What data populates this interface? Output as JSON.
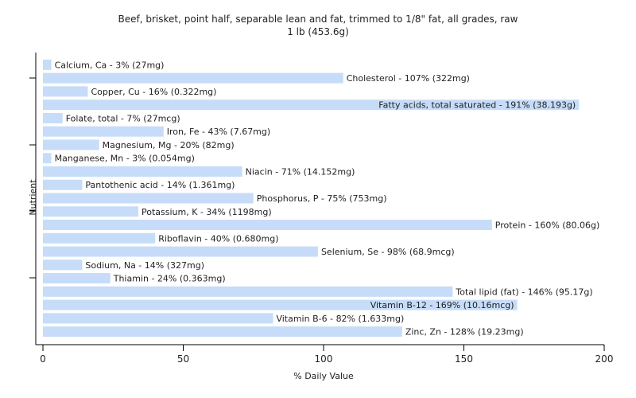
{
  "chart_data": {
    "type": "bar",
    "orientation": "horizontal",
    "title": "Beef, brisket, point half, separable lean and fat, trimmed to 1/8\" fat, all grades, raw",
    "subtitle": "1 lb (453.6g)",
    "xlabel": "% Daily Value",
    "ylabel": "Nutrient",
    "xlim": [
      0,
      200
    ],
    "xticks": [
      0,
      50,
      100,
      150,
      200
    ],
    "grid": false,
    "bar_color": "#c6dcf8",
    "categories": [
      "Calcium, Ca",
      "Cholesterol",
      "Copper, Cu",
      "Fatty acids, total saturated",
      "Folate, total",
      "Iron, Fe",
      "Magnesium, Mg",
      "Manganese, Mn",
      "Niacin",
      "Pantothenic acid",
      "Phosphorus, P",
      "Potassium, K",
      "Protein",
      "Riboflavin",
      "Selenium, Se",
      "Sodium, Na",
      "Thiamin",
      "Total lipid (fat)",
      "Vitamin B-12",
      "Vitamin B-6",
      "Zinc, Zn"
    ],
    "values": [
      3,
      107,
      16,
      191,
      7,
      43,
      20,
      3,
      71,
      14,
      75,
      34,
      160,
      40,
      98,
      14,
      24,
      146,
      169,
      82,
      128
    ],
    "labels": [
      "Calcium, Ca - 3% (27mg)",
      "Cholesterol - 107% (322mg)",
      "Copper, Cu - 16% (0.322mg)",
      "Fatty acids, total saturated - 191% (38.193g)",
      "Folate, total - 7% (27mcg)",
      "Iron, Fe - 43% (7.67mg)",
      "Magnesium, Mg - 20% (82mg)",
      "Manganese, Mn - 3% (0.054mg)",
      "Niacin - 71% (14.152mg)",
      "Pantothenic acid - 14% (1.361mg)",
      "Phosphorus, P - 75% (753mg)",
      "Potassium, K - 34% (1198mg)",
      "Protein - 160% (80.06g)",
      "Riboflavin - 40% (0.680mg)",
      "Selenium, Se - 98% (68.9mcg)",
      "Sodium, Na - 14% (327mg)",
      "Thiamin - 24% (0.363mg)",
      "Total lipid (fat) - 146% (95.17g)",
      "Vitamin B-12 - 169% (10.16mcg)",
      "Vitamin B-6 - 82% (1.633mg)",
      "Zinc, Zn - 128% (19.23mg)"
    ]
  }
}
